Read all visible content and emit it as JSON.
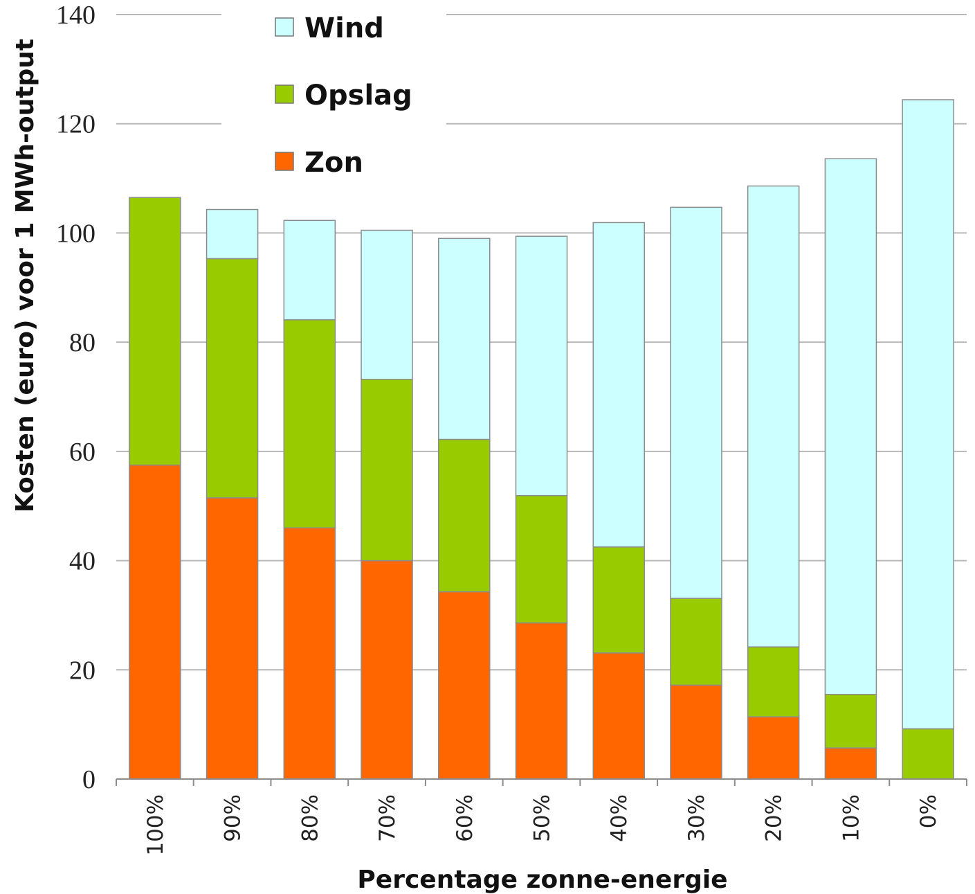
{
  "chart_data": {
    "type": "bar",
    "stacked": true,
    "categories": [
      "100%",
      "90%",
      "80%",
      "70%",
      "60%",
      "50%",
      "40%",
      "30%",
      "20%",
      "10%",
      "0%"
    ],
    "series": [
      {
        "name": "Zon",
        "color": "#ff6600",
        "values": [
          57.5,
          51.5,
          46,
          40,
          34.3,
          28.6,
          23.1,
          17.2,
          11.4,
          5.7,
          0
        ]
      },
      {
        "name": "Opslag",
        "color": "#99cc00",
        "values": [
          49,
          43.8,
          38.1,
          33.2,
          27.9,
          23.3,
          19.4,
          15.9,
          12.8,
          9.8,
          9.2
        ]
      },
      {
        "name": "Wind",
        "color": "#ccffff",
        "values": [
          0,
          9,
          18.2,
          27.3,
          36.8,
          47.5,
          59.4,
          71.6,
          84.4,
          98.1,
          115.2
        ]
      }
    ],
    "legend_order": [
      "Wind",
      "Opslag",
      "Zon"
    ],
    "xlabel": "Percentage zonne-energie",
    "ylabel": "Kosten (euro)  voor 1 MWh-output",
    "ylim": [
      0,
      140
    ],
    "yticks": [
      "0",
      "20",
      "40",
      "60",
      "80",
      "100",
      "120",
      "140"
    ],
    "grid": true,
    "legend_position": "top-left"
  }
}
